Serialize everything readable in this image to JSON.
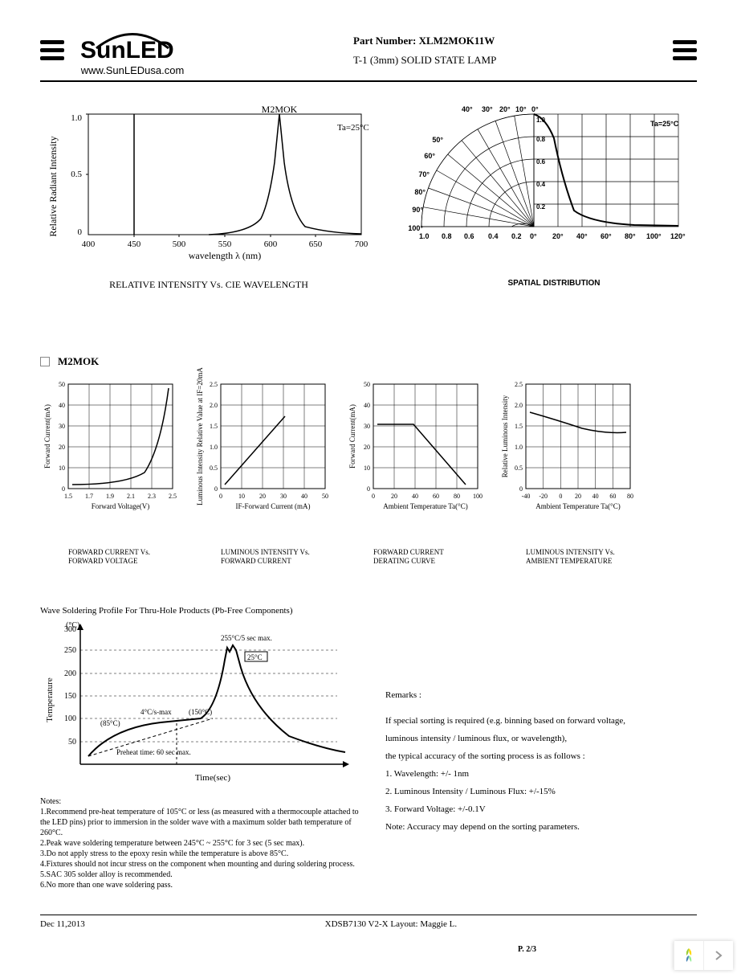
{
  "header": {
    "logo_text": "SunLED",
    "logo_url": "www.SunLEDusa.com",
    "part_label": "Part Number: ",
    "part_number": "XLM2MOK11W",
    "part_desc": "T-1 (3mm) SOLID STATE LAMP"
  },
  "chart1": {
    "type": "line",
    "title": "RELATIVE INTENSITY Vs. CIE WAVELENGTH",
    "series_label": "M2MOK",
    "annotation": "Ta=25°C",
    "xlabel": "wavelength λ (nm)",
    "ylabel": "Relative Radiant Intensity",
    "xlim": [
      400,
      700
    ],
    "xticks": [
      400,
      450,
      500,
      550,
      600,
      650,
      700
    ],
    "ylim": [
      0,
      1.0
    ],
    "yticks": [
      0,
      0.5,
      1.0
    ],
    "peak_x": 610,
    "line_color": "#000000",
    "grid_color": "#000000",
    "background": "#ffffff",
    "vline_x": 450
  },
  "chart2": {
    "type": "polar",
    "title": "SPATIAL DISTRIBUTION",
    "annotation": "Ta=25°C",
    "angle_labels_left": [
      "40°",
      "30°",
      "20°",
      "10°",
      "0°"
    ],
    "angle_labels_side": [
      "50°",
      "60°",
      "70°",
      "80°",
      "90°",
      "100°"
    ],
    "x_labels": [
      "1.0",
      "0.8",
      "0.6",
      "0.4",
      "0.2",
      "0°",
      "20°",
      "40°",
      "60°",
      "80°",
      "100°",
      "120°"
    ],
    "radial_ticks": [
      "1.0",
      "0.8",
      "0.6",
      "0.4",
      "0.2"
    ],
    "line_color": "#000000"
  },
  "section_header": "M2MOK",
  "small_charts": [
    {
      "type": "line",
      "ylabel": "Forward Current(mA)",
      "xlabel": "Forward Voltage(V)",
      "title": "FORWARD CURRENT Vs.\nFORWARD VOLTAGE",
      "xlim": [
        1.5,
        2.5
      ],
      "xticks": [
        "1.5",
        "1.7",
        "1.9",
        "2.1",
        "2.3",
        "2.5"
      ],
      "ylim": [
        0,
        50
      ],
      "yticks": [
        0,
        10,
        20,
        30,
        40,
        50
      ],
      "curve": "exponential"
    },
    {
      "type": "line",
      "ylabel": "Luminous Intensity\nRelative Value at IF=20mA",
      "xlabel": "IF-Forward Current (mA)",
      "title": "LUMINOUS INTENSITY Vs.\nFORWARD CURRENT",
      "xlim": [
        0,
        50
      ],
      "xticks": [
        0,
        10,
        20,
        30,
        40,
        50
      ],
      "ylim": [
        0,
        2.5
      ],
      "yticks": [
        "0",
        "0.5",
        "1.0",
        "1.5",
        "2.0",
        "2.5"
      ],
      "curve": "linear"
    },
    {
      "type": "line",
      "ylabel": "Forward Current(mA)",
      "xlabel": "Ambient Temperature Ta(°C)",
      "title": "FORWARD CURRENT\nDERATING CURVE",
      "xlim": [
        0,
        100
      ],
      "xticks": [
        0,
        20,
        40,
        60,
        80,
        100
      ],
      "ylim": [
        0,
        50
      ],
      "yticks": [
        0,
        10,
        20,
        30,
        40,
        50
      ],
      "curve": "derating"
    },
    {
      "type": "line",
      "ylabel": "Relative Luminous Intensity",
      "xlabel": "Ambient Temperature Ta(°C)",
      "title": "LUMINOUS INTENSITY Vs.\nAMBIENT TEMPERATURE",
      "xlim": [
        -40,
        80
      ],
      "xticks": [
        -40,
        -20,
        0,
        20,
        40,
        60,
        80
      ],
      "ylim": [
        0,
        2.5
      ],
      "yticks": [
        "0",
        "0.5",
        "1.0",
        "1.5",
        "2.0",
        "2.5"
      ],
      "curve": "gentle-decline"
    }
  ],
  "soldering": {
    "title": "Wave Soldering Profile For Thru-Hole Products (Pb-Free Components)",
    "ylabel": "Temperature",
    "y_unit": "(°C)",
    "xlabel": "Time(sec)",
    "yticks": [
      50,
      100,
      150,
      200,
      250,
      300
    ],
    "ymax_label": "300",
    "annotations": {
      "peak": "255°C/5 sec max.",
      "ramp1": "4°C/s-max",
      "temp1": "(85°C)",
      "temp2": "(150°C)",
      "preheat": "Preheat time: 60 sec max.",
      "fill": "25°C"
    },
    "notes_header": "Notes:",
    "notes": [
      "1.Recommend pre-heat temperature of 105°C or less (as measured with a thermocouple attached to the LED pins) prior to immersion in the solder wave with a maximum solder bath temperature of 260°C.",
      "2.Peak wave soldering temperature between 245°C ~ 255°C for 3 sec (5 sec max).",
      "3.Do not apply stress to the epoxy resin while the temperature is above 85°C.",
      "4.Fixtures should not incur stress on the component when mounting and during soldering process.",
      "5.SAC 305 solder alloy is recommended.",
      "6.No more than one wave soldering pass."
    ]
  },
  "remarks": {
    "header": "Remarks :",
    "lines": [
      "If special sorting is required (e.g. binning based on forward voltage,",
      "luminous intensity / luminous flux, or wavelength),",
      "the typical accuracy of the sorting process is as follows :",
      "1. Wavelength: +/- 1nm",
      "2. Luminous Intensity / Luminous Flux: +/-15%",
      "3. Forward Voltage: +/-0.1V",
      "Note: Accuracy may depend on the sorting parameters."
    ]
  },
  "footer": {
    "date": "Dec 11,2013",
    "doc": "XDSB7130    V2-X    Layout: Maggie L.",
    "page": "P. 2/3"
  },
  "colors": {
    "text": "#000000",
    "bg": "#ffffff",
    "widget_green": "#9acd32",
    "widget_blue": "#4682b4",
    "widget_yellow": "#ffd700",
    "widget_arrow": "#999999"
  }
}
